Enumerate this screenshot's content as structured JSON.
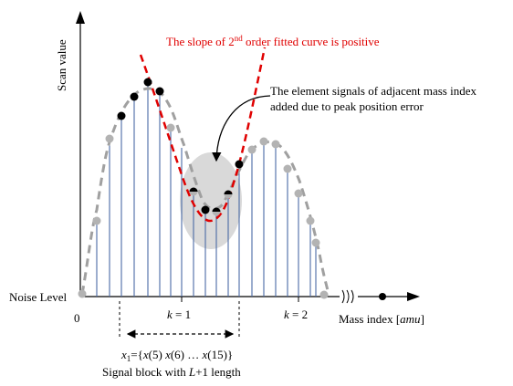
{
  "axes": {
    "y_label": "Scan value",
    "x_label_main": "Mass index [",
    "x_label_unit": "amu",
    "x_label_close": "]",
    "origin_label": "0",
    "noise_level_label": "Noise Level"
  },
  "annotations": {
    "slope_note_prefix": "The slope of 2",
    "slope_note_sup": "nd",
    "slope_note_suffix": " order fitted curve is positive",
    "element_signals_line1": "The element signals of adjacent mass index",
    "element_signals_line2": "added due to peak position error"
  },
  "k_labels": {
    "k1_var": "k",
    "k1_eq": " = 1",
    "k2_var": "k",
    "k2_eq": " = 2"
  },
  "signal_block": {
    "formula_x1": "x",
    "formula_sub": "1",
    "formula_eq": "={",
    "formula_x5": "x",
    "formula_5": "(5) ",
    "formula_x6": "x",
    "formula_6": "(6) … ",
    "formula_x15": "x",
    "formula_15": "(15)}",
    "caption_prefix": "Signal block with ",
    "caption_var": "L",
    "caption_suffix": "+1 length"
  },
  "colors": {
    "stem": "#4a6aa5",
    "envelope": "#a0a0a0",
    "fit_curve": "#e00000",
    "highlight_region": "#d9d9d9",
    "dark_dot": "#000000",
    "light_dot": "#b3b3b3"
  }
}
